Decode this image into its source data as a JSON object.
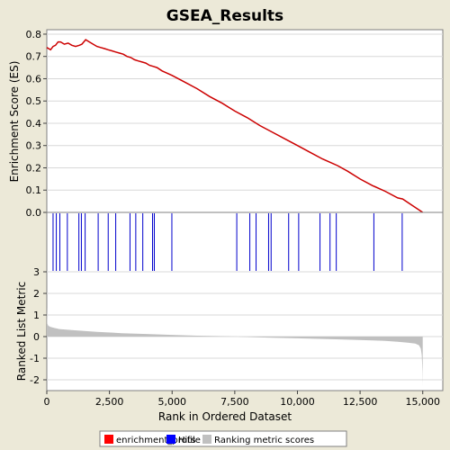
{
  "chart_data": {
    "type": "line",
    "title": "GSEA_Results",
    "xlabel": "Rank in Ordered Dataset",
    "es_panel": {
      "ylabel": "Enrichment Score (ES)",
      "ylim": [
        0,
        0.82
      ],
      "yticks": [
        "0.0",
        "0.1",
        "0.2",
        "0.3",
        "0.4",
        "0.5",
        "0.6",
        "0.7",
        "0.8"
      ],
      "ytick_values": [
        0,
        0.1,
        0.2,
        0.3,
        0.4,
        0.5,
        0.6,
        0.7,
        0.8
      ],
      "series_name": "enrichment_profile",
      "color": "#cc0000",
      "x": [
        0,
        150,
        250,
        350,
        450,
        550,
        700,
        850,
        1000,
        1150,
        1300,
        1400,
        1550,
        1700,
        1850,
        2000,
        2150,
        2300,
        2450,
        2600,
        2750,
        2900,
        3050,
        3200,
        3350,
        3500,
        3650,
        3800,
        3950,
        4100,
        4250,
        4400,
        4600,
        4800,
        5000,
        5500,
        6000,
        6500,
        7000,
        7500,
        8000,
        8500,
        9000,
        9500,
        10000,
        10500,
        11000,
        11300,
        11600,
        12000,
        12500,
        13000,
        13100,
        13500,
        14000,
        14200,
        14600,
        15000
      ],
      "y": [
        0.74,
        0.73,
        0.745,
        0.75,
        0.765,
        0.765,
        0.755,
        0.76,
        0.75,
        0.745,
        0.75,
        0.755,
        0.775,
        0.765,
        0.755,
        0.745,
        0.74,
        0.735,
        0.73,
        0.725,
        0.72,
        0.715,
        0.71,
        0.7,
        0.695,
        0.685,
        0.68,
        0.675,
        0.67,
        0.66,
        0.655,
        0.65,
        0.635,
        0.625,
        0.615,
        0.585,
        0.555,
        0.52,
        0.49,
        0.455,
        0.425,
        0.39,
        0.36,
        0.33,
        0.3,
        0.27,
        0.24,
        0.225,
        0.21,
        0.185,
        0.15,
        0.12,
        0.115,
        0.095,
        0.065,
        0.06,
        0.03,
        0.0
      ]
    },
    "hits_panel": {
      "series_name": "Hits",
      "color": "#0000cc",
      "positions": [
        250,
        380,
        520,
        820,
        1280,
        1380,
        1530,
        2050,
        2450,
        2750,
        3320,
        3550,
        3830,
        4220,
        4290,
        4990,
        7580,
        8100,
        8350,
        8850,
        8950,
        9650,
        10050,
        10900,
        11300,
        11550,
        13050,
        14180
      ]
    },
    "metric_panel": {
      "ylabel": "Ranked List Metric",
      "ylim": [
        -2.5,
        3
      ],
      "yticks": [
        "-2",
        "-1",
        "0",
        "1",
        "2",
        "3"
      ],
      "ytick_values": [
        -2,
        -1,
        0,
        1,
        2,
        3
      ],
      "series_name": "Ranking metric scores",
      "color": "#c0c0c0",
      "x": [
        0,
        20,
        60,
        150,
        300,
        500,
        1000,
        2000,
        3000,
        4000,
        5000,
        6000,
        7000,
        7600,
        8000,
        9000,
        10000,
        11000,
        12000,
        13000,
        13500,
        14000,
        14400,
        14700,
        14850,
        14920,
        14960,
        14990,
        15000
      ],
      "y": [
        1.35,
        0.6,
        0.5,
        0.45,
        0.4,
        0.35,
        0.3,
        0.22,
        0.16,
        0.12,
        0.08,
        0.04,
        0.02,
        0.0,
        -0.02,
        -0.05,
        -0.08,
        -0.11,
        -0.14,
        -0.18,
        -0.2,
        -0.24,
        -0.28,
        -0.32,
        -0.4,
        -0.55,
        -0.85,
        -1.6,
        -2.3
      ]
    },
    "xlim": [
      0,
      15800
    ],
    "xticks": [
      "0",
      "2,500",
      "5,000",
      "7,500",
      "10,000",
      "12,500",
      "15,000"
    ],
    "xtick_values": [
      0,
      2500,
      5000,
      7500,
      10000,
      12500,
      15000
    ],
    "legend": {
      "placement": "bottom",
      "entries": [
        {
          "label": "enrichment_profile",
          "color": "#ff0000"
        },
        {
          "label": "Hits",
          "color": "#0000ff"
        },
        {
          "label": "Ranking metric scores",
          "color": "#c0c0c0"
        }
      ]
    }
  }
}
